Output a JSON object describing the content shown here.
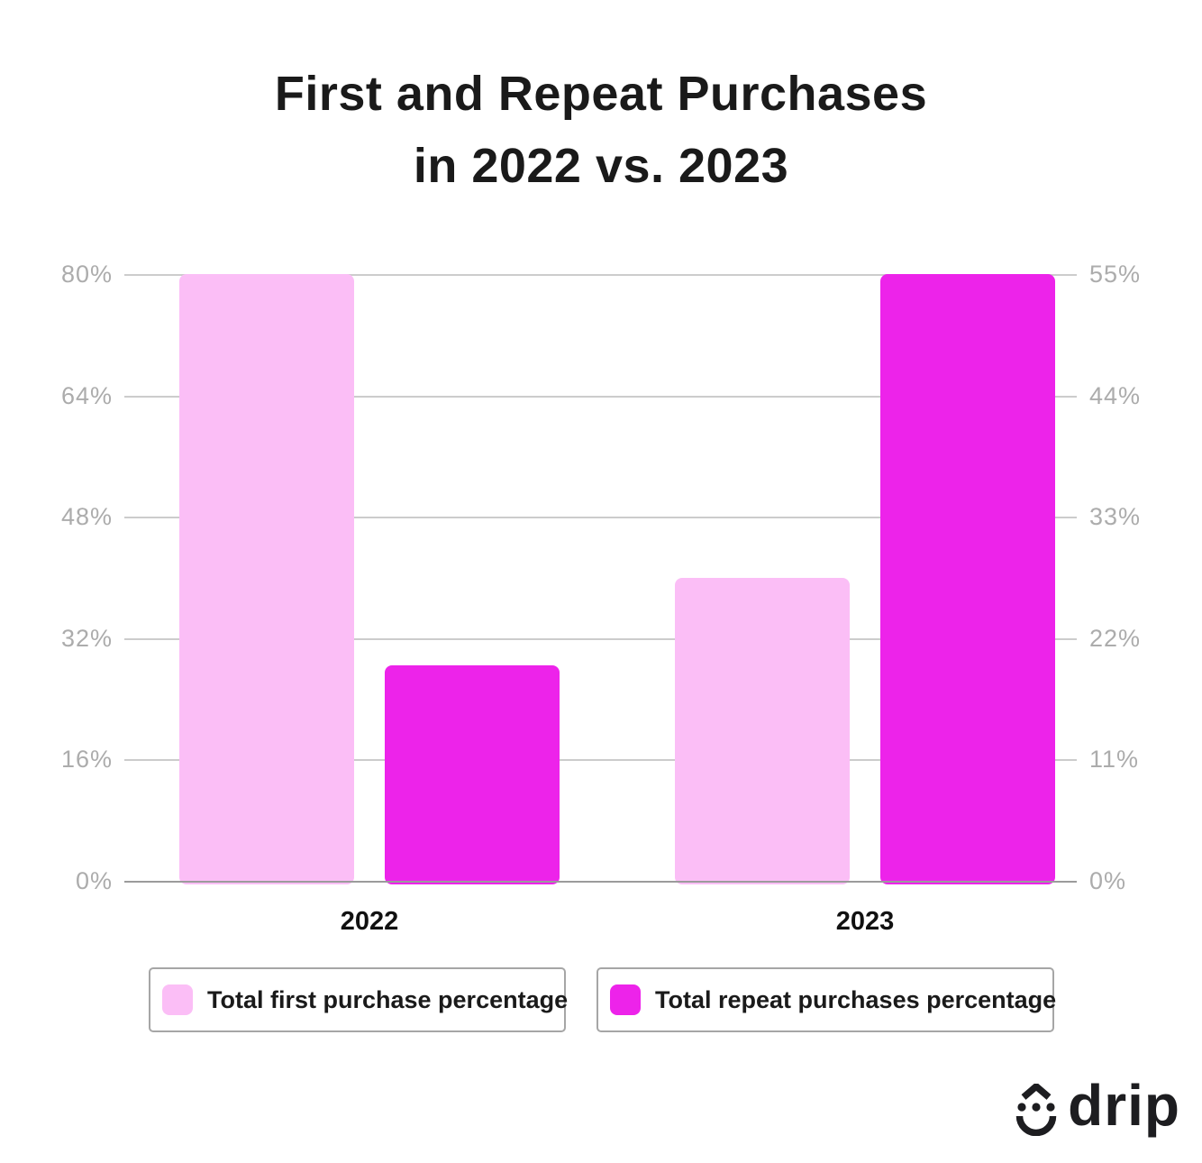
{
  "title": {
    "line1": "First and Repeat Purchases",
    "line2": "in 2022 vs. 2023"
  },
  "chart_data": {
    "type": "bar",
    "categories": [
      "2022",
      "2023"
    ],
    "series": [
      {
        "name": "Total first purchase percentage",
        "axis": "left",
        "values": [
          80,
          40
        ],
        "color": "#FBBEF6"
      },
      {
        "name": "Total repeat purchases percentage",
        "axis": "right",
        "values": [
          19.5,
          55
        ],
        "color": "#ED23EA"
      }
    ],
    "left_axis": {
      "tick_labels": [
        "80%",
        "64%",
        "48%",
        "32%",
        "16%",
        "0%"
      ],
      "min": 0,
      "max": 80
    },
    "right_axis": {
      "tick_labels": [
        "55%",
        "44%",
        "33%",
        "22%",
        "11%",
        "0%"
      ],
      "min": 0,
      "max": 55
    },
    "grid": true,
    "legend_position": "bottom"
  },
  "legend": {
    "items": [
      {
        "label": "Total first purchase percentage",
        "color": "#FBBEF6"
      },
      {
        "label": "Total repeat purchases percentage",
        "color": "#ED23EA"
      }
    ]
  },
  "logo": {
    "text": "drip"
  },
  "colors": {
    "background": "#FFFFFF",
    "title_text": "#1A1A1A",
    "grid_line": "#CCCCCC",
    "axis_baseline": "#9B9B9B",
    "tick_text": "#ACACAC",
    "legend_border": "#A6A6A6",
    "logo": "#1D1D20",
    "bar_first": "#FBBEF6",
    "bar_repeat": "#ED23EA"
  }
}
